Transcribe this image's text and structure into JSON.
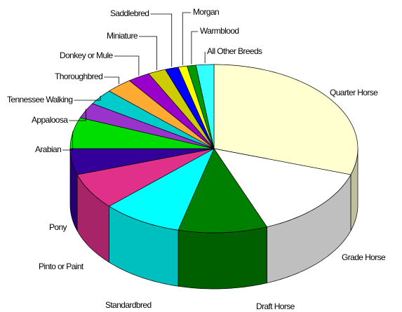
{
  "chart_data": {
    "type": "pie3d",
    "categories": [
      "Quarter Horse",
      "Grade Horse",
      "Draft Horse",
      "Standardbred",
      "Pinto or Paint",
      "Pony",
      "Arabian",
      "Appaloosa",
      "Tennessee Walking",
      "Thoroughbred",
      "Donkey or Mule",
      "Miniature",
      "Saddlebred",
      "Morgan",
      "Warmblood",
      "All Other Breeds"
    ],
    "values": [
      30,
      14,
      10,
      9,
      7,
      5,
      6,
      3,
      3,
      3,
      2.5,
      2,
      1.5,
      1,
      1,
      2
    ],
    "colors": [
      "#ffffd0",
      "#ffffff",
      "#008000",
      "#00ffff",
      "#e0308a",
      "#330099",
      "#00dd00",
      "#9933cc",
      "#00cccc",
      "#ffaa33",
      "#9900cc",
      "#cccc00",
      "#0000ff",
      "#ffff00",
      "#009900",
      "#33ffff"
    ]
  }
}
